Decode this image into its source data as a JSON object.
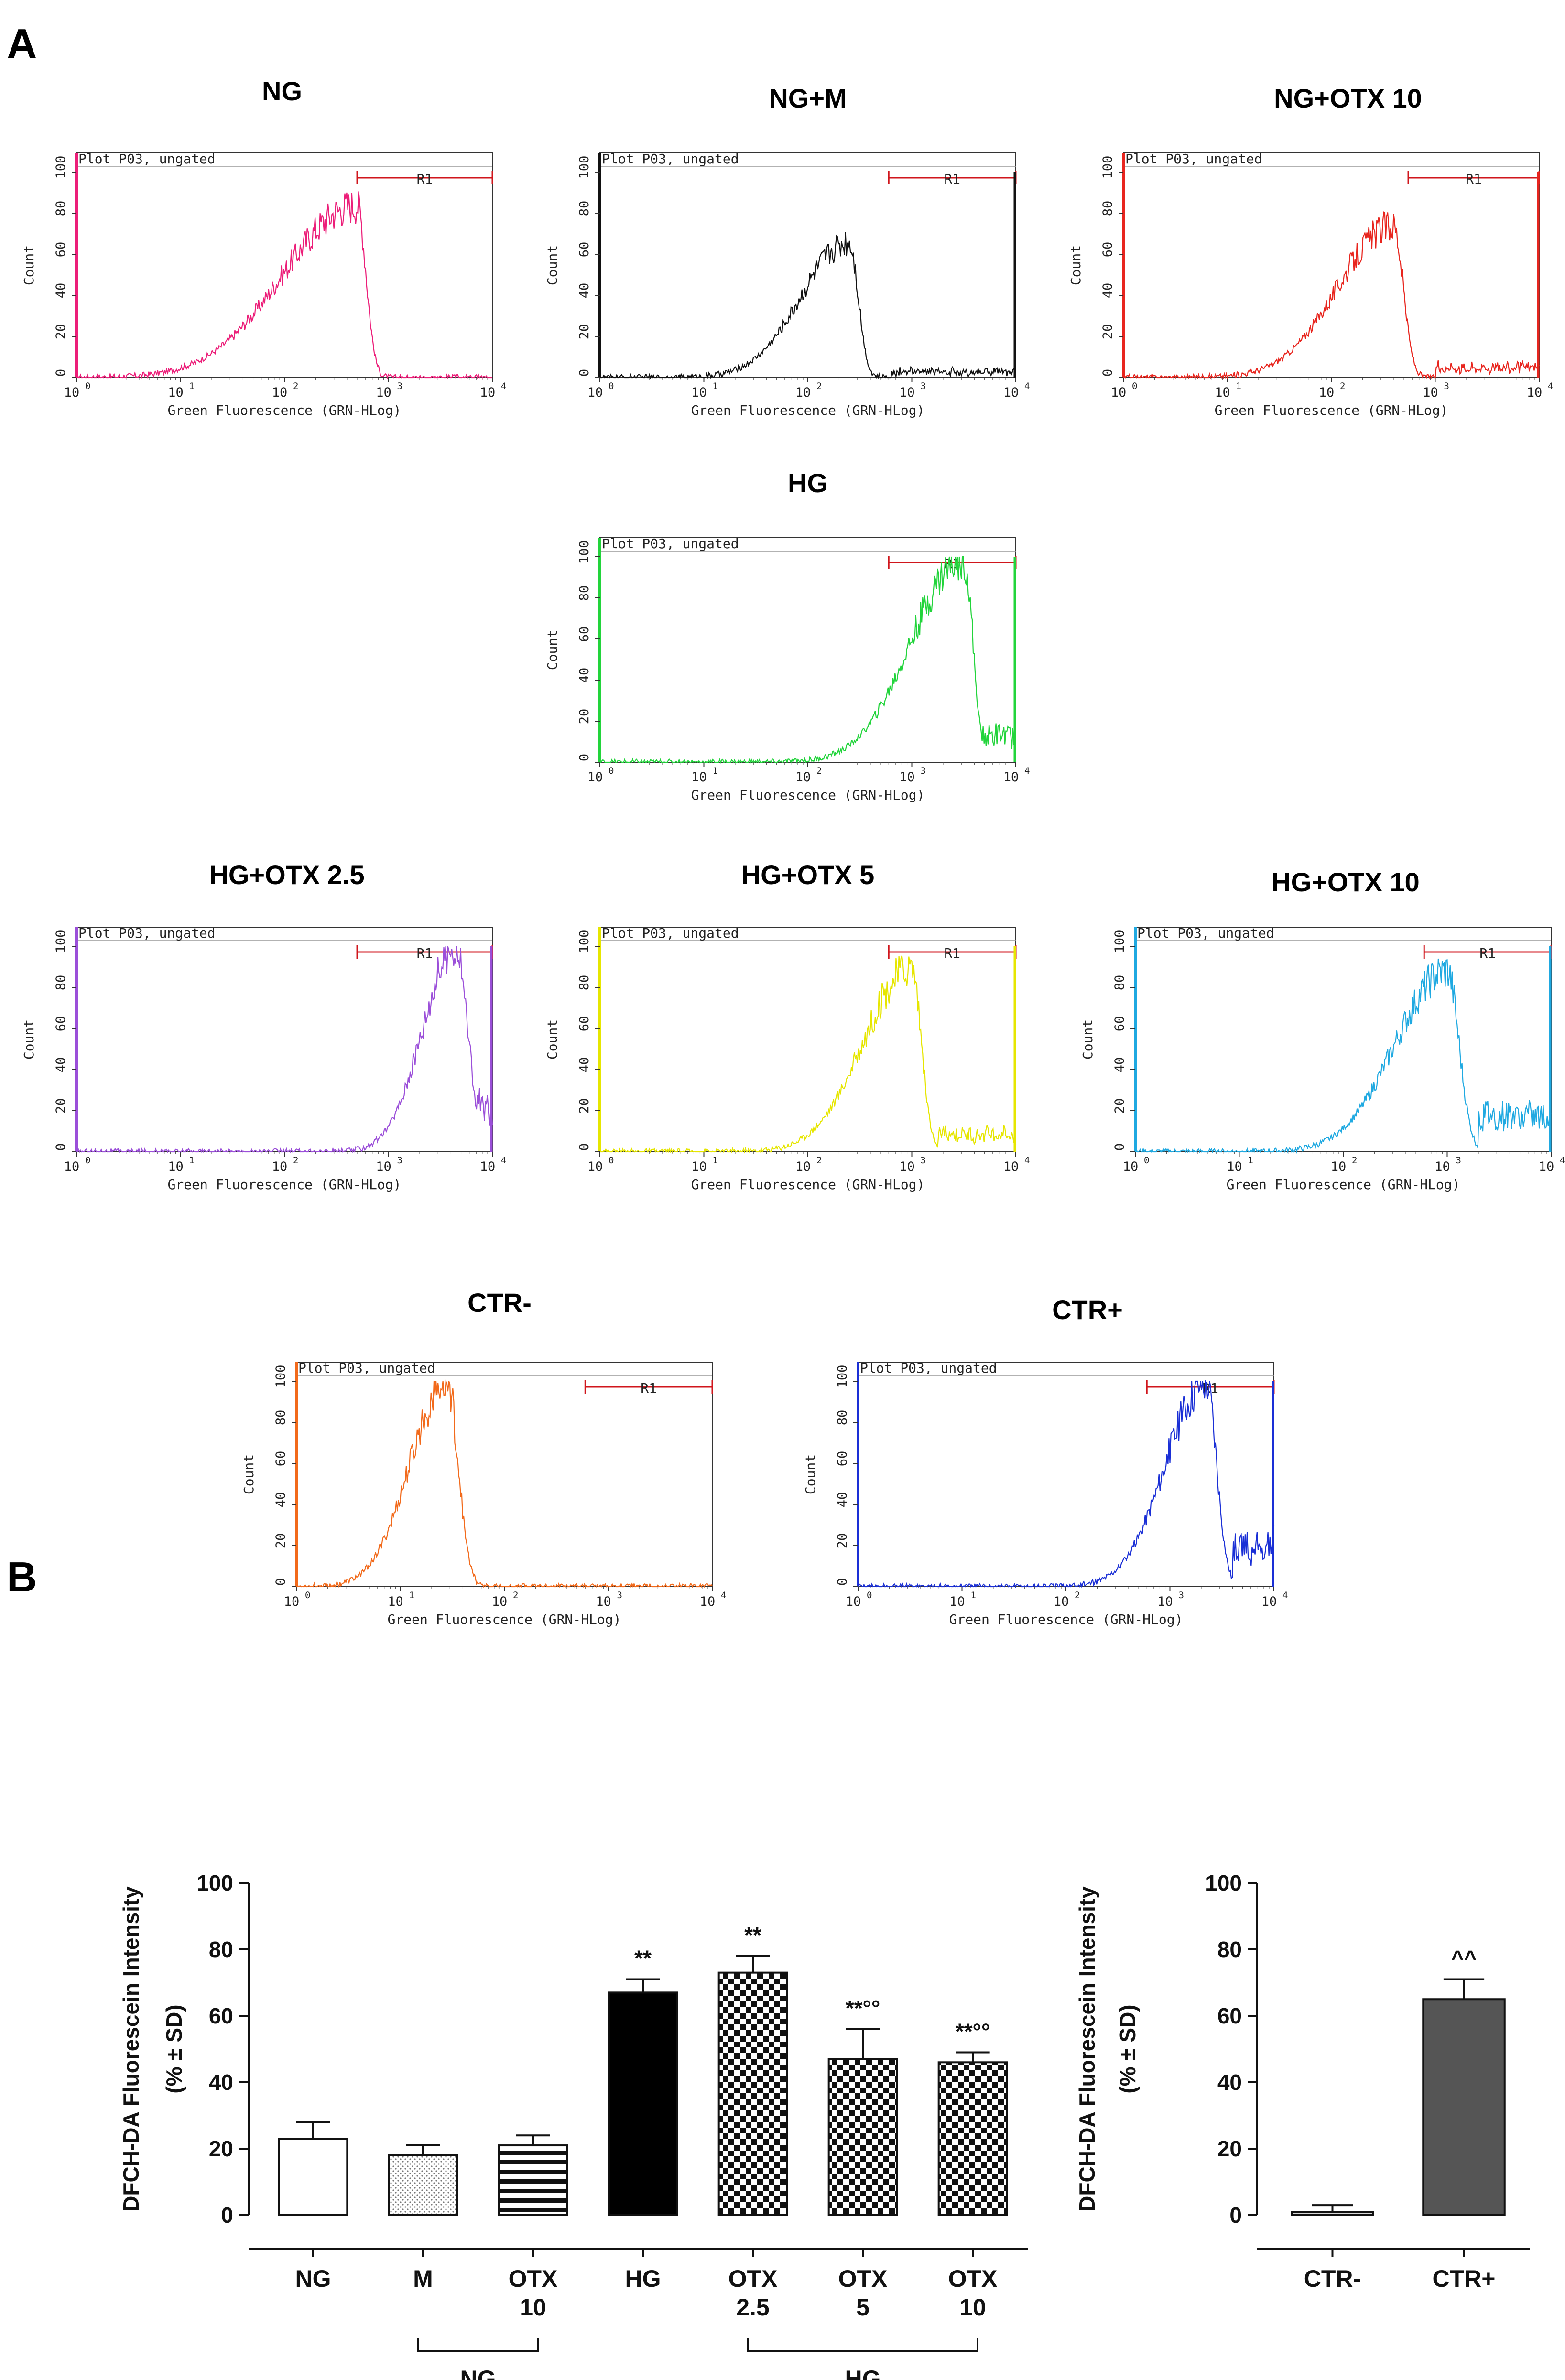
{
  "panels": {
    "a": "A",
    "b": "B"
  },
  "chart_data": [
    {
      "type": "line",
      "kind": "histogram",
      "id": "hist-ng",
      "title": "NG",
      "color": "#ec1e79",
      "plot_label": "Plot P03, ungated",
      "gate_label": "R1",
      "gate_range": [
        500,
        10000
      ],
      "ylabel": "Count",
      "xlabel": "Green Fluorescence (GRN-HLog)",
      "xscale": "log",
      "xlim": [
        1,
        10000
      ],
      "ylim": [
        0,
        100
      ],
      "yticks": [
        0,
        20,
        40,
        60,
        80,
        100
      ],
      "xtick_base": "10",
      "xtick_exps": [
        "0",
        "1",
        "2",
        "3",
        "4"
      ],
      "peak": {
        "log_x": 2.7,
        "count": 84
      },
      "left_width": 1.0,
      "right_width": 0.12,
      "tail_start": 3.1,
      "tail_level": 0,
      "edge_spike": 0
    },
    {
      "type": "line",
      "kind": "histogram",
      "id": "hist-ng-m",
      "title": "NG+M",
      "color": "#111111",
      "plot_label": "Plot P03, ungated",
      "gate_label": "R1",
      "gate_range": [
        600,
        10000
      ],
      "ylabel": "Count",
      "xlabel": "Green Fluorescence (GRN-HLog)",
      "xscale": "log",
      "xlim": [
        1,
        10000
      ],
      "ylim": [
        0,
        100
      ],
      "yticks": [
        0,
        20,
        40,
        60,
        80,
        100
      ],
      "xtick_base": "10",
      "xtick_exps": [
        "0",
        "1",
        "2",
        "3",
        "4"
      ],
      "peak": {
        "log_x": 2.4,
        "count": 66
      },
      "left_width": 0.65,
      "right_width": 0.12,
      "tail_start": 2.8,
      "tail_level": 4,
      "edge_spike": 100
    },
    {
      "type": "line",
      "kind": "histogram",
      "id": "hist-ng-otx10",
      "title": "NG+OTX 10",
      "color": "#e8251e",
      "plot_label": "Plot P03, ungated",
      "gate_label": "R1",
      "gate_range": [
        550,
        10000
      ],
      "ylabel": "Count",
      "xlabel": "Green Fluorescence (GRN-HLog)",
      "xscale": "log",
      "xlim": [
        1,
        10000
      ],
      "ylim": [
        0,
        100
      ],
      "yticks": [
        0,
        20,
        40,
        60,
        80,
        100
      ],
      "xtick_base": "10",
      "xtick_exps": [
        "0",
        "1",
        "2",
        "3",
        "4"
      ],
      "peak": {
        "log_x": 2.6,
        "count": 74
      },
      "left_width": 0.75,
      "right_width": 0.13,
      "tail_start": 3.0,
      "tail_level": 7,
      "edge_spike": 100
    },
    {
      "type": "line",
      "kind": "histogram",
      "id": "hist-hg",
      "title": "HG",
      "color": "#22d43b",
      "plot_label": "Plot P03, ungated",
      "gate_label": "R1",
      "gate_range": [
        600,
        10000
      ],
      "ylabel": "Count",
      "xlabel": "Green Fluorescence (GRN-HLog)",
      "xscale": "log",
      "xlim": [
        1,
        10000
      ],
      "ylim": [
        0,
        100
      ],
      "yticks": [
        0,
        20,
        40,
        60,
        80,
        100
      ],
      "xtick_base": "10",
      "xtick_exps": [
        "0",
        "1",
        "2",
        "3",
        "4"
      ],
      "peak": {
        "log_x": 3.5,
        "count": 100
      },
      "left_width": 0.7,
      "right_width": 0.12,
      "tail_start": 3.65,
      "tail_level": 18,
      "edge_spike": 100
    },
    {
      "type": "line",
      "kind": "histogram",
      "id": "hist-hg-otx25",
      "title": "HG+OTX 2.5",
      "color": "#9b4fd9",
      "plot_label": "Plot P03, ungated",
      "gate_label": "R1",
      "gate_range": [
        500,
        10000
      ],
      "ylabel": "Count",
      "xlabel": "Green Fluorescence (GRN-HLog)",
      "xscale": "log",
      "xlim": [
        1,
        10000
      ],
      "ylim": [
        0,
        100
      ],
      "yticks": [
        0,
        20,
        40,
        60,
        80,
        100
      ],
      "xtick_base": "10",
      "xtick_exps": [
        "0",
        "1",
        "2",
        "3",
        "4"
      ],
      "peak": {
        "log_x": 3.65,
        "count": 100
      },
      "left_width": 0.45,
      "right_width": 0.16,
      "tail_start": 3.85,
      "tail_level": 30,
      "edge_spike": 100
    },
    {
      "type": "line",
      "kind": "histogram",
      "id": "hist-hg-otx5",
      "title": "HG+OTX 5",
      "color": "#e6e600",
      "plot_label": "Plot P03, ungated",
      "gate_label": "R1",
      "gate_range": [
        600,
        10000
      ],
      "ylabel": "Count",
      "xlabel": "Green Fluorescence (GRN-HLog)",
      "xscale": "log",
      "xlim": [
        1,
        10000
      ],
      "ylim": [
        0,
        100
      ],
      "yticks": [
        0,
        20,
        40,
        60,
        80,
        100
      ],
      "xtick_base": "10",
      "xtick_exps": [
        "0",
        "1",
        "2",
        "3",
        "4"
      ],
      "peak": {
        "log_x": 3.0,
        "count": 90
      },
      "left_width": 0.65,
      "right_width": 0.13,
      "tail_start": 3.25,
      "tail_level": 12,
      "edge_spike": 100
    },
    {
      "type": "line",
      "kind": "histogram",
      "id": "hist-hg-otx10",
      "title": "HG+OTX 10",
      "color": "#1fa9e1",
      "plot_label": "Plot P03, ungated",
      "gate_label": "R1",
      "gate_range": [
        600,
        10000
      ],
      "ylabel": "Count",
      "xlabel": "Green Fluorescence (GRN-HLog)",
      "xscale": "log",
      "xlim": [
        1,
        10000
      ],
      "ylim": [
        0,
        100
      ],
      "yticks": [
        0,
        20,
        40,
        60,
        80,
        100
      ],
      "xtick_base": "10",
      "xtick_exps": [
        "0",
        "1",
        "2",
        "3",
        "4"
      ],
      "peak": {
        "log_x": 3.0,
        "count": 88
      },
      "left_width": 0.7,
      "right_width": 0.16,
      "tail_start": 3.3,
      "tail_level": 25,
      "edge_spike": 100
    },
    {
      "type": "line",
      "kind": "histogram",
      "id": "hist-ctr-neg",
      "title": "CTR-",
      "color": "#f26a1b",
      "plot_label": "Plot P03, ungated",
      "gate_label": "R1",
      "gate_range": [
        600,
        10000
      ],
      "ylabel": "Count",
      "xlabel": "Green Fluorescence (GRN-HLog)",
      "xscale": "log",
      "xlim": [
        1,
        10000
      ],
      "ylim": [
        0,
        100
      ],
      "yticks": [
        0,
        20,
        40,
        60,
        80,
        100
      ],
      "xtick_base": "10",
      "xtick_exps": [
        "0",
        "1",
        "2",
        "3",
        "4"
      ],
      "peak": {
        "log_x": 1.45,
        "count": 100
      },
      "left_width": 0.5,
      "right_width": 0.15,
      "tail_start": 1.8,
      "tail_level": 0,
      "edge_spike": 0
    },
    {
      "type": "line",
      "kind": "histogram",
      "id": "hist-ctr-pos",
      "title": "CTR+",
      "color": "#1a2fd6",
      "plot_label": "Plot P03, ungated",
      "gate_label": "R1",
      "gate_range": [
        600,
        10000
      ],
      "ylabel": "Count",
      "xlabel": "Green Fluorescence (GRN-HLog)",
      "xscale": "log",
      "xlim": [
        1,
        10000
      ],
      "ylim": [
        0,
        100
      ],
      "yticks": [
        0,
        20,
        40,
        60,
        80,
        100
      ],
      "xtick_base": "10",
      "xtick_exps": [
        "0",
        "1",
        "2",
        "3",
        "4"
      ],
      "peak": {
        "log_x": 3.35,
        "count": 100
      },
      "left_width": 0.55,
      "right_width": 0.14,
      "tail_start": 3.6,
      "tail_level": 28,
      "edge_spike": 100
    },
    {
      "type": "bar",
      "id": "bar-main",
      "ylabel": "DFCH-DA Fluorescein Intensity",
      "ylabel2": "(% ± SD)",
      "ylim": [
        0,
        100
      ],
      "yticks": [
        0,
        20,
        40,
        60,
        80,
        100
      ],
      "categories": [
        {
          "line1": "NG",
          "line2": ""
        },
        {
          "line1": "M",
          "line2": ""
        },
        {
          "line1": "OTX",
          "line2": "10"
        },
        {
          "line1": "HG",
          "line2": ""
        },
        {
          "line1": "OTX",
          "line2": "2.5"
        },
        {
          "line1": "OTX",
          "line2": "5"
        },
        {
          "line1": "OTX",
          "line2": "10"
        }
      ],
      "values": [
        23,
        18,
        21,
        67,
        73,
        47,
        46
      ],
      "errors": [
        5,
        3,
        3,
        4,
        5,
        9,
        3
      ],
      "patterns": [
        "white",
        "dots",
        "hstripes",
        "black",
        "checker",
        "checker",
        "checker"
      ],
      "significance": [
        "",
        "",
        "",
        "**",
        "**",
        "**°°",
        "**°°"
      ],
      "groups": [
        {
          "label": "NG",
          "from": 1,
          "to": 2
        },
        {
          "label": "HG",
          "from": 4,
          "to": 6
        }
      ]
    },
    {
      "type": "bar",
      "id": "bar-ctr",
      "ylabel": "DFCH-DA Fluorescein Intensity",
      "ylabel2": "(% ± SD)",
      "ylim": [
        0,
        100
      ],
      "yticks": [
        0,
        20,
        40,
        60,
        80,
        100
      ],
      "categories": [
        {
          "line1": "CTR-",
          "line2": ""
        },
        {
          "line1": "CTR+",
          "line2": ""
        }
      ],
      "values": [
        1,
        65
      ],
      "errors": [
        2,
        6
      ],
      "patterns": [
        "lightgray",
        "darkgray"
      ],
      "significance": [
        "",
        "^^"
      ],
      "groups": []
    }
  ]
}
